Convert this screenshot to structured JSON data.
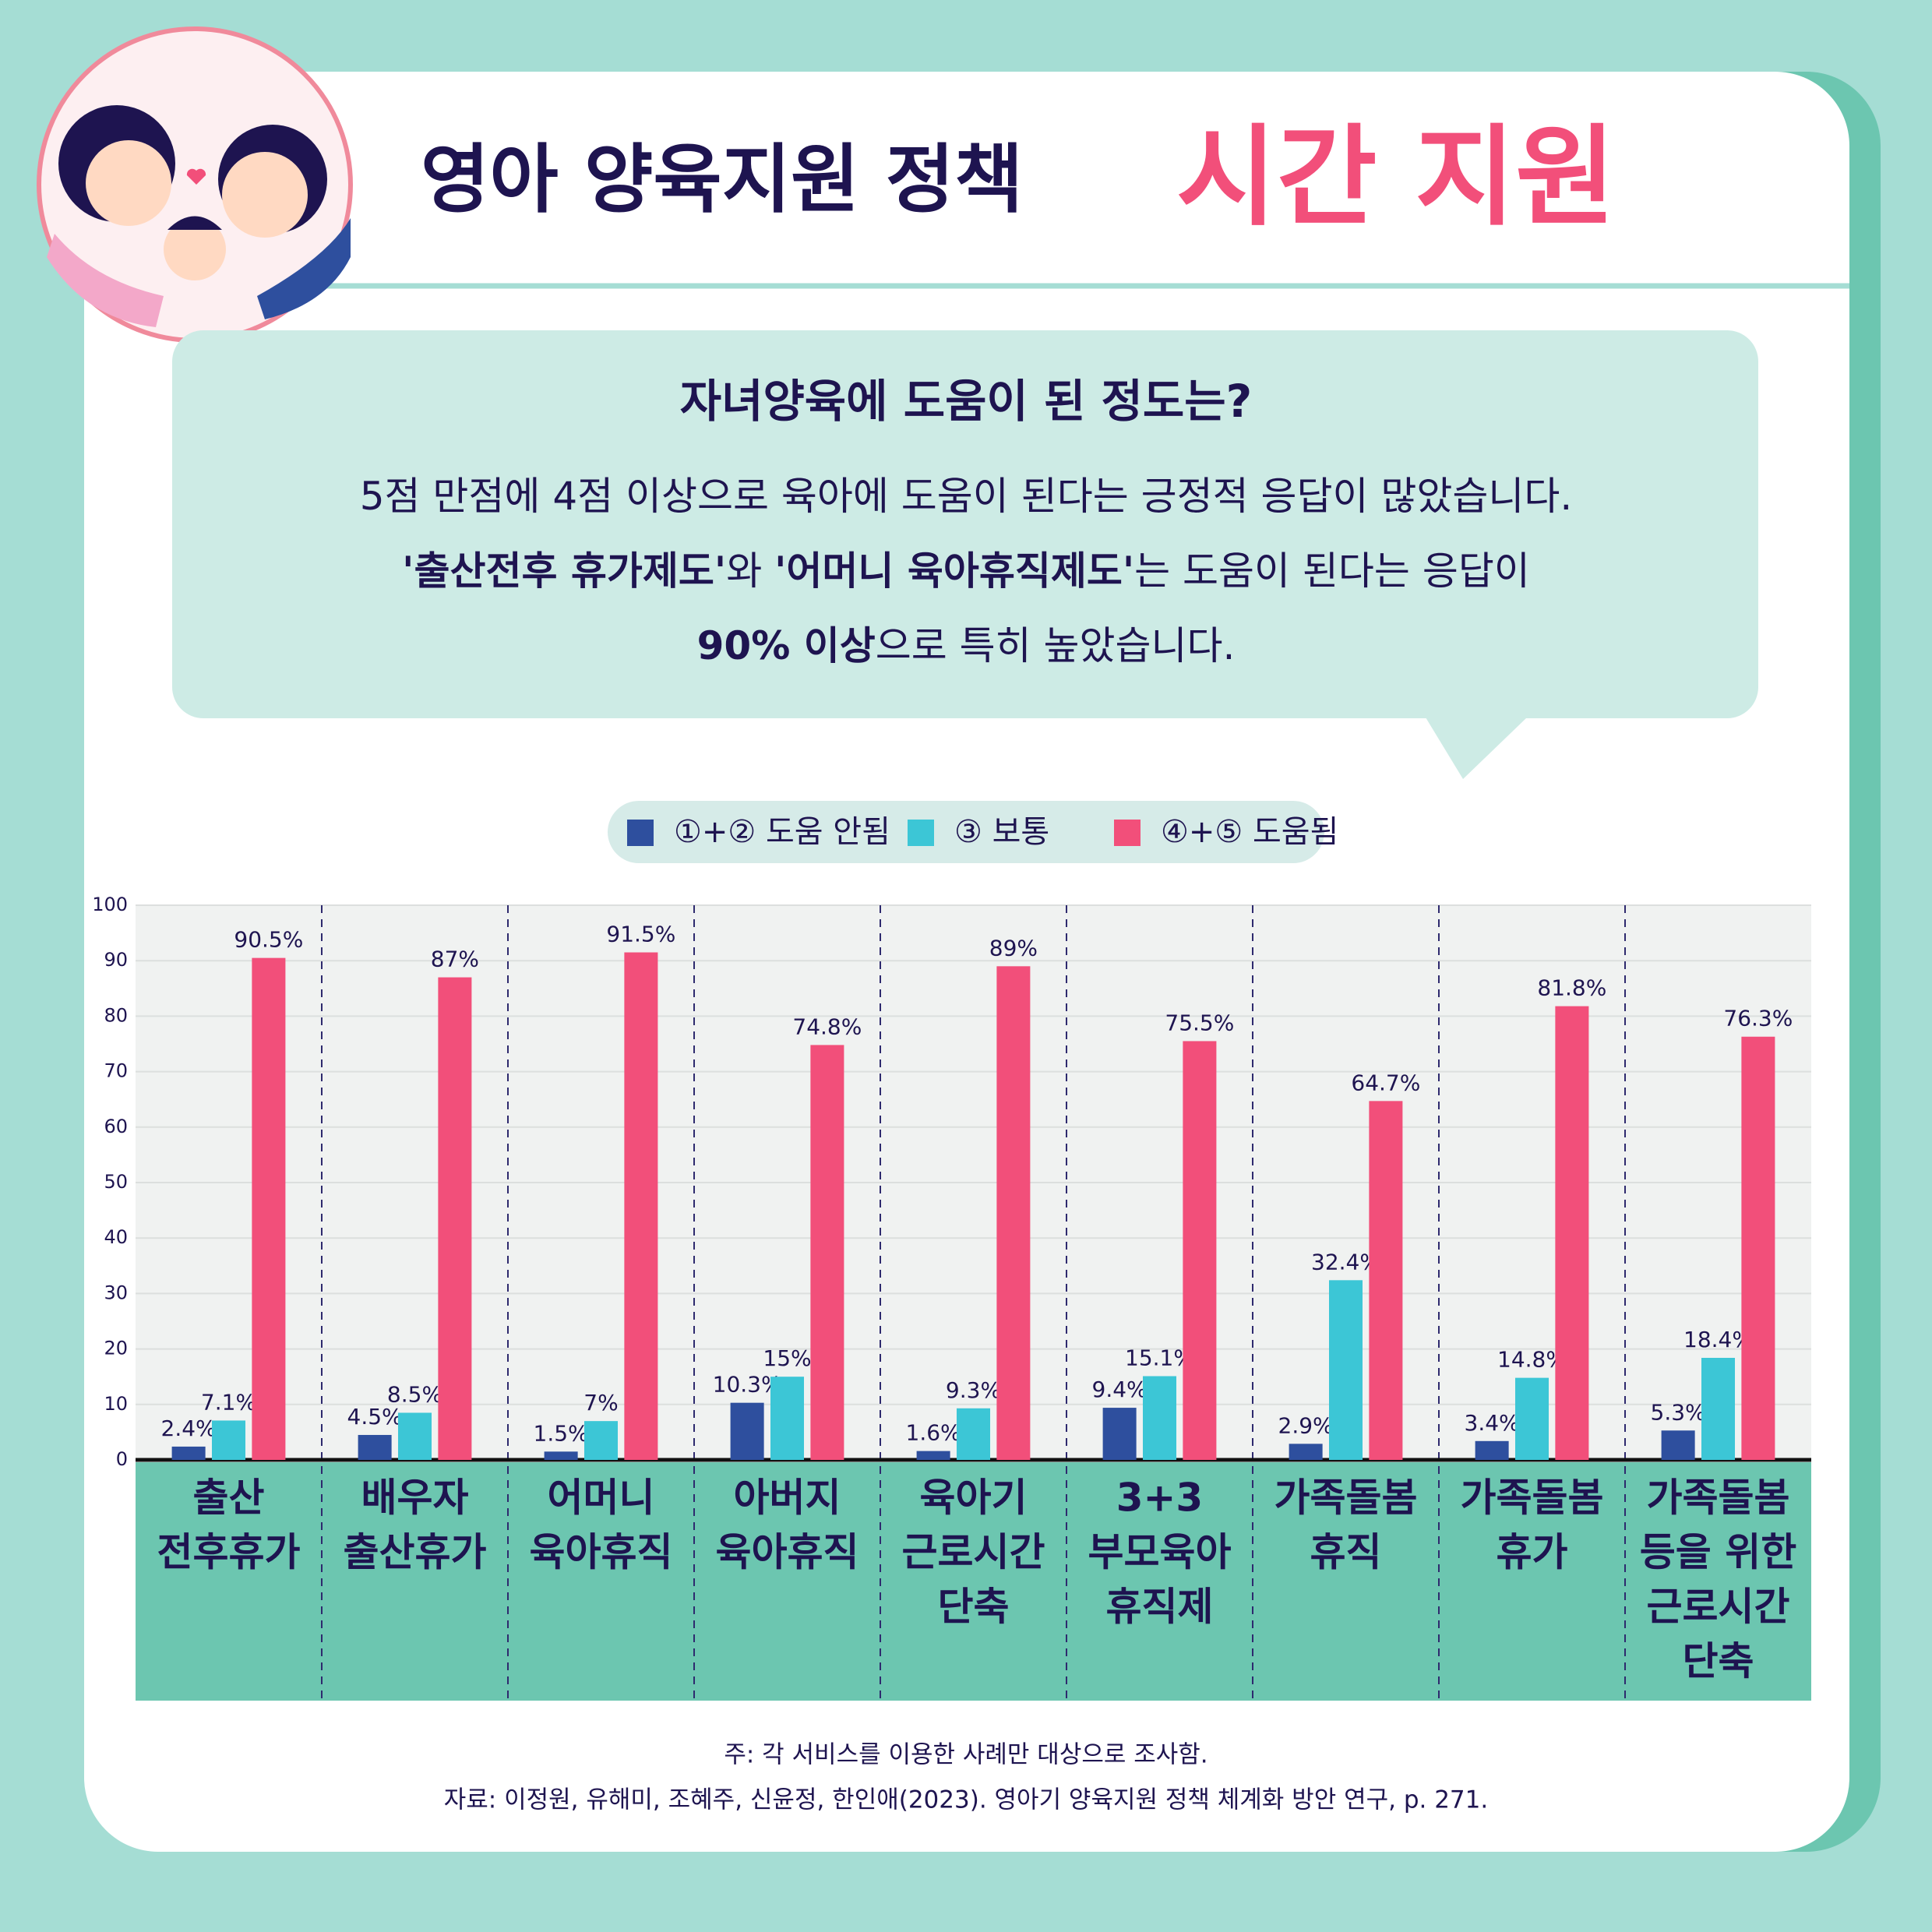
{
  "header": {
    "title": "영아 양육지원 정책",
    "highlight": "시간 지원"
  },
  "callout": {
    "title": "자녀양육에 도움이 된 정도는?",
    "lines": [
      [
        {
          "text": "5점 만점에 4점 이상으로 육아에 도움이 된다는 긍정적 응답이 많았습니다.",
          "bold": false
        }
      ],
      [
        {
          "text": "'출산전후 휴가제도'",
          "bold": true
        },
        {
          "text": "와 ",
          "bold": false
        },
        {
          "text": "'어머니 육아휴직제도'",
          "bold": true
        },
        {
          "text": "는 도움이 된다는 응답이",
          "bold": false
        }
      ],
      [
        {
          "text": "90% 이상",
          "bold": true
        },
        {
          "text": "으로 특히 높았습니다.",
          "bold": false
        }
      ]
    ]
  },
  "chart_data": {
    "type": "bar",
    "categories": [
      [
        "출산",
        "전후휴가"
      ],
      [
        "배우자",
        "출산휴가"
      ],
      [
        "어머니",
        "육아휴직"
      ],
      [
        "아버지",
        "육아휴직"
      ],
      [
        "육아기",
        "근로시간",
        "단축"
      ],
      [
        "3+3",
        "부모육아",
        "휴직제"
      ],
      [
        "가족돌봄",
        "휴직"
      ],
      [
        "가족돌봄",
        "휴가"
      ],
      [
        "가족돌봄",
        "등을 위한",
        "근로시간",
        "단축"
      ]
    ],
    "series": [
      {
        "name": "①+② 도움 안됨",
        "color": "#2e4f9e",
        "values": [
          2.4,
          4.5,
          1.5,
          10.3,
          1.6,
          9.4,
          2.9,
          3.4,
          5.3
        ],
        "value_labels": [
          "2.4%",
          "4.5%",
          "1.5%",
          "10.3%",
          "1.6%",
          "9.4%",
          "2.9%",
          "3.4%",
          "5.3%"
        ]
      },
      {
        "name": "③ 보통",
        "color": "#3cc6d6",
        "values": [
          7.1,
          8.5,
          7,
          15,
          9.3,
          15.1,
          32.4,
          14.8,
          18.4
        ],
        "value_labels": [
          "7.1%",
          "8.5%",
          "7%",
          "15%",
          "9.3%",
          "15.1%",
          "32.4%",
          "14.8%",
          "18.4%"
        ]
      },
      {
        "name": "④+⑤ 도움됨",
        "color": "#f24f7a",
        "values": [
          90.5,
          87,
          91.5,
          74.8,
          89,
          75.5,
          64.7,
          81.8,
          76.3
        ],
        "value_labels": [
          "90.5%",
          "87%",
          "91.5%",
          "74.8%",
          "89%",
          "75.5%",
          "64.7%",
          "81.8%",
          "76.3%"
        ]
      }
    ],
    "ylim": [
      0,
      100
    ],
    "yticks": [
      0,
      10,
      20,
      30,
      40,
      50,
      60,
      70,
      80,
      90,
      100
    ],
    "grid": true
  },
  "notes": [
    "주: 각 서비스를 이용한 사례만 대상으로 조사함.",
    "자료: 이정원, 유해미, 조혜주, 신윤정, 한인애(2023). 영아기 양육지원 정책 체계화 방안 연구, p. 271."
  ]
}
